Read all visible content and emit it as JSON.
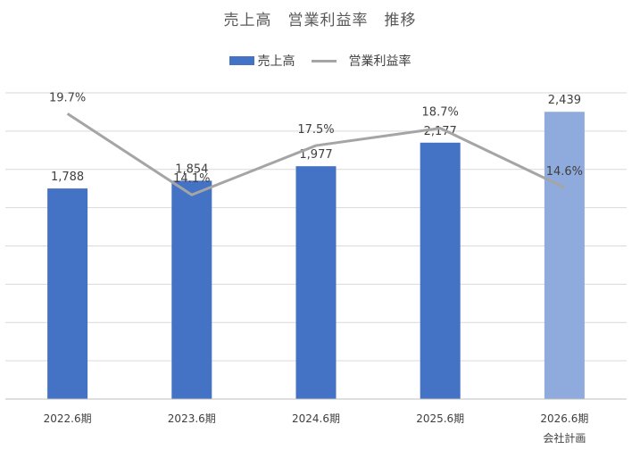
{
  "chart_data": {
    "type": "bar",
    "title": "売上高　営業利益率　推移",
    "categories": [
      [
        "2022.6期"
      ],
      [
        "2023.6期"
      ],
      [
        "2024.6期"
      ],
      [
        "2025.6期"
      ],
      [
        "2026.6期",
        "会社計画"
      ]
    ],
    "series": [
      {
        "name": "売上高",
        "type": "bar",
        "values": [
          1788,
          1854,
          1977,
          2177,
          2439
        ],
        "labels": [
          "1,788",
          "1,854",
          "1,977",
          "2,177",
          "2,439"
        ],
        "color": "#4472C4",
        "forecast_color": "#8FAADC"
      },
      {
        "name": "営業利益率",
        "type": "line",
        "values": [
          19.7,
          14.1,
          17.5,
          18.7,
          14.6
        ],
        "labels": [
          "19.7%",
          "14.1%",
          "17.5%",
          "18.7%",
          "14.6%"
        ],
        "color": "#A5A5A5"
      }
    ],
    "grid": true,
    "legend_position": "top"
  }
}
